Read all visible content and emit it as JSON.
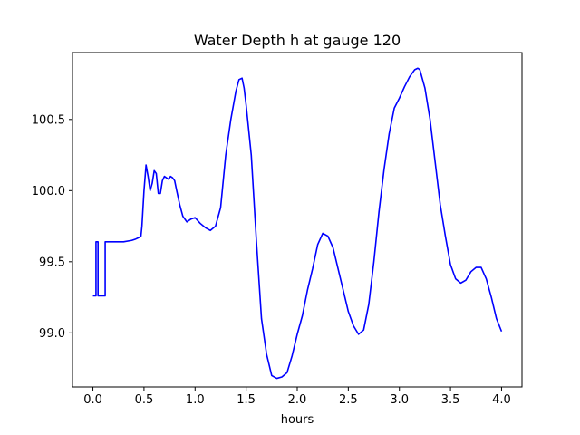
{
  "chart_data": {
    "type": "line",
    "title": "Water Depth h at gauge 120",
    "xlabel": "hours",
    "ylabel": "",
    "xlim": [
      -0.2,
      4.2
    ],
    "ylim": [
      98.62,
      100.97
    ],
    "x_ticks": [
      0.0,
      0.5,
      1.0,
      1.5,
      2.0,
      2.5,
      3.0,
      3.5,
      4.0
    ],
    "x_tick_labels": [
      "0.0",
      "0.5",
      "1.0",
      "1.5",
      "2.0",
      "2.5",
      "3.0",
      "3.5",
      "4.0"
    ],
    "y_ticks": [
      99.0,
      99.5,
      100.0,
      100.5
    ],
    "y_tick_labels": [
      "99.0",
      "99.5",
      "100.0",
      "100.5"
    ],
    "grid": false,
    "legend": "none",
    "series": [
      {
        "color": "#0000ff",
        "x": [
          0.0,
          0.03,
          0.03,
          0.05,
          0.05,
          0.06,
          0.06,
          0.12,
          0.12,
          0.2,
          0.3,
          0.38,
          0.42,
          0.45,
          0.47,
          0.48,
          0.5,
          0.52,
          0.54,
          0.56,
          0.58,
          0.6,
          0.62,
          0.64,
          0.66,
          0.68,
          0.7,
          0.72,
          0.74,
          0.76,
          0.78,
          0.8,
          0.82,
          0.85,
          0.88,
          0.92,
          0.96,
          1.0,
          1.05,
          1.1,
          1.15,
          1.2,
          1.25,
          1.3,
          1.35,
          1.4,
          1.43,
          1.46,
          1.48,
          1.5,
          1.55,
          1.6,
          1.65,
          1.7,
          1.75,
          1.8,
          1.85,
          1.9,
          1.95,
          2.0,
          2.05,
          2.1,
          2.15,
          2.2,
          2.25,
          2.3,
          2.35,
          2.4,
          2.45,
          2.5,
          2.55,
          2.6,
          2.65,
          2.7,
          2.75,
          2.8,
          2.85,
          2.9,
          2.95,
          3.0,
          3.05,
          3.1,
          3.15,
          3.18,
          3.2,
          3.25,
          3.3,
          3.35,
          3.4,
          3.45,
          3.5,
          3.55,
          3.6,
          3.65,
          3.7,
          3.75,
          3.8,
          3.85,
          3.9,
          3.95,
          4.0
        ],
        "y": [
          99.26,
          99.26,
          99.64,
          99.64,
          99.26,
          99.26,
          99.26,
          99.26,
          99.64,
          99.64,
          99.64,
          99.65,
          99.66,
          99.67,
          99.68,
          99.75,
          100.0,
          100.18,
          100.1,
          100.0,
          100.05,
          100.14,
          100.12,
          99.98,
          99.98,
          100.07,
          100.1,
          100.09,
          100.08,
          100.1,
          100.09,
          100.07,
          100.0,
          99.9,
          99.82,
          99.78,
          99.8,
          99.81,
          99.77,
          99.74,
          99.72,
          99.75,
          99.88,
          100.25,
          100.5,
          100.7,
          100.78,
          100.79,
          100.72,
          100.6,
          100.25,
          99.65,
          99.1,
          98.85,
          98.7,
          98.68,
          98.69,
          98.72,
          98.84,
          98.99,
          99.12,
          99.3,
          99.45,
          99.62,
          99.7,
          99.68,
          99.6,
          99.45,
          99.3,
          99.15,
          99.05,
          98.99,
          99.02,
          99.2,
          99.5,
          99.85,
          100.15,
          100.4,
          100.58,
          100.65,
          100.73,
          100.8,
          100.85,
          100.86,
          100.85,
          100.72,
          100.5,
          100.2,
          99.9,
          99.68,
          99.48,
          99.38,
          99.35,
          99.37,
          99.43,
          99.46,
          99.46,
          99.38,
          99.25,
          99.1,
          99.01
        ]
      }
    ]
  }
}
